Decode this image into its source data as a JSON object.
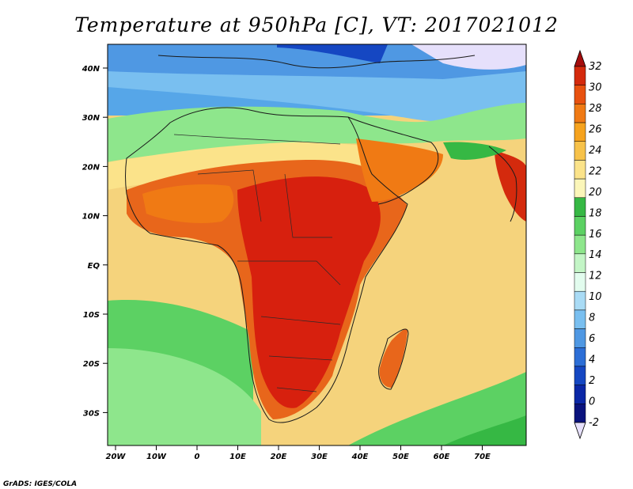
{
  "title": "Temperature at 950hPa [C], VT: 2017021012",
  "credit": "GrADS: IGES/COLA",
  "lat_ticks": [
    "40N",
    "30N",
    "20N",
    "10N",
    "EQ",
    "10S",
    "20S",
    "30S"
  ],
  "lon_ticks": [
    "20W",
    "10W",
    "0",
    "10E",
    "20E",
    "30E",
    "40E",
    "50E",
    "60E",
    "70E"
  ],
  "colorbar": {
    "labels": [
      "32",
      "30",
      "28",
      "26",
      "24",
      "22",
      "20",
      "18",
      "16",
      "14",
      "12",
      "10",
      "8",
      "6",
      "4",
      "2",
      "0",
      "-2"
    ],
    "colors": [
      "#a50d0d",
      "#d42a0d",
      "#e8510f",
      "#f07a14",
      "#f6a31e",
      "#f7c24a",
      "#fbe38a",
      "#fbf6b9",
      "#36b844",
      "#5cd163",
      "#8ee68c",
      "#c3f5c6",
      "#e2fcee",
      "#a9dbf5",
      "#79bff0",
      "#4f98e3",
      "#2c6ed6",
      "#1547c2",
      "#0b27a6",
      "#0a137d",
      "#e6e0fb"
    ]
  },
  "map": {
    "ocean_color": "#f5d37c",
    "land_color": "#e8661b",
    "hot_color": "#d7200e",
    "north_band_color": "#56a6e8",
    "south_band_color": "#45c74f"
  }
}
